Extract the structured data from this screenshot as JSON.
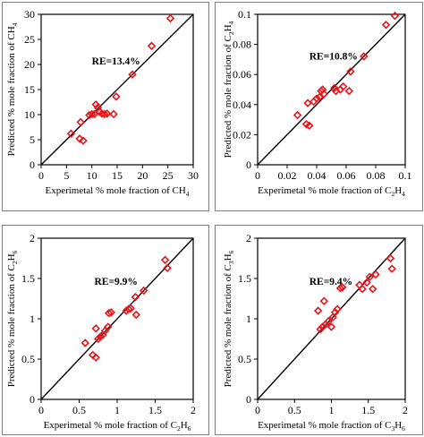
{
  "style": {
    "marker_color": "#e8141b",
    "line_color": "#000000",
    "border_color": "#7f7f7f"
  },
  "chart_data": [
    {
      "type": "scatter",
      "species_label": "CH4",
      "xlabel": [
        "Experimetal % mole fraction of CH",
        "4"
      ],
      "ylabel": [
        "Predicted % mole fraction of CH",
        "4"
      ],
      "xlim": [
        0,
        30
      ],
      "ylim": [
        0,
        30
      ],
      "xticks": [
        0,
        5,
        10,
        15,
        20,
        25,
        30
      ],
      "yticks": [
        0,
        5,
        10,
        15,
        20,
        25,
        30
      ],
      "tick_labels_x": [
        "0",
        "5",
        "10",
        "15",
        "20",
        "25",
        "30"
      ],
      "tick_labels_y": [
        "0",
        "5",
        "10",
        "15",
        "20",
        "25",
        "30"
      ],
      "annotation": "RE=13.4%",
      "annotation_pos": [
        10,
        20
      ],
      "reference_line": "y = x",
      "grid": false,
      "points": [
        [
          5.9,
          6.2
        ],
        [
          7.6,
          5.2
        ],
        [
          8.3,
          4.8
        ],
        [
          7.8,
          8.5
        ],
        [
          9.5,
          9.9
        ],
        [
          10.0,
          10.1
        ],
        [
          10.5,
          10.1
        ],
        [
          10.8,
          12.0
        ],
        [
          11.2,
          11.4
        ],
        [
          11.5,
          10.6
        ],
        [
          12.0,
          10.2
        ],
        [
          12.5,
          10.1
        ],
        [
          13.0,
          10.2
        ],
        [
          14.3,
          10.1
        ],
        [
          14.8,
          13.6
        ],
        [
          18.0,
          18.0
        ],
        [
          21.8,
          23.7
        ],
        [
          25.5,
          29.2
        ]
      ]
    },
    {
      "type": "scatter",
      "species_label": "C2H4",
      "xlabel": [
        "Experimetal % mole fraction of C",
        "2",
        "H",
        "4"
      ],
      "ylabel": [
        "Predicted % mole fraction of C",
        "2",
        "H",
        "4"
      ],
      "xlim": [
        0,
        0.1
      ],
      "ylim": [
        0,
        0.1
      ],
      "xticks": [
        0,
        0.02,
        0.04,
        0.06,
        0.08,
        0.1
      ],
      "yticks": [
        0,
        0.02,
        0.04,
        0.06,
        0.08,
        0.1
      ],
      "tick_labels_x": [
        "0",
        "0.02",
        "0.04",
        "0.06",
        "0.08",
        "0.1"
      ],
      "tick_labels_y": [
        "0",
        "0.02",
        "0.04",
        "0.06",
        "0.08",
        "0.1"
      ],
      "annotation": "RE=10.8%",
      "annotation_pos": [
        0.035,
        0.07
      ],
      "reference_line": "y = x",
      "grid": false,
      "points": [
        [
          0.027,
          0.033
        ],
        [
          0.033,
          0.027
        ],
        [
          0.035,
          0.026
        ],
        [
          0.034,
          0.041
        ],
        [
          0.038,
          0.042
        ],
        [
          0.04,
          0.044
        ],
        [
          0.042,
          0.045
        ],
        [
          0.043,
          0.049
        ],
        [
          0.044,
          0.05
        ],
        [
          0.045,
          0.047
        ],
        [
          0.052,
          0.051
        ],
        [
          0.053,
          0.049
        ],
        [
          0.056,
          0.05
        ],
        [
          0.058,
          0.052
        ],
        [
          0.062,
          0.049
        ],
        [
          0.063,
          0.062
        ],
        [
          0.072,
          0.072
        ],
        [
          0.087,
          0.093
        ],
        [
          0.093,
          0.099
        ]
      ]
    },
    {
      "type": "scatter",
      "species_label": "C2H6",
      "xlabel": [
        "Experimetal % mole fraction of C",
        "2",
        "H",
        "6"
      ],
      "ylabel": [
        "Predicted % mole fraction of C",
        "2",
        "H",
        "6"
      ],
      "xlim": [
        0,
        2
      ],
      "ylim": [
        0,
        2
      ],
      "xticks": [
        0,
        0.5,
        1,
        1.5,
        2
      ],
      "yticks": [
        0,
        0.5,
        1,
        1.5,
        2
      ],
      "tick_labels_x": [
        "0",
        "0.5",
        "1",
        "1.5",
        "2"
      ],
      "tick_labels_y": [
        "0",
        "0.5",
        "1",
        "1.5",
        "2"
      ],
      "annotation": "RE=9.9%",
      "annotation_pos": [
        0.7,
        1.42
      ],
      "reference_line": "y = x",
      "grid": false,
      "points": [
        [
          0.58,
          0.7
        ],
        [
          0.68,
          0.55
        ],
        [
          0.72,
          0.52
        ],
        [
          0.72,
          0.88
        ],
        [
          0.75,
          0.75
        ],
        [
          0.78,
          0.78
        ],
        [
          0.81,
          0.8
        ],
        [
          0.84,
          0.85
        ],
        [
          0.88,
          0.9
        ],
        [
          0.89,
          1.07
        ],
        [
          0.92,
          1.08
        ],
        [
          1.12,
          1.1
        ],
        [
          1.15,
          1.12
        ],
        [
          1.18,
          1.13
        ],
        [
          1.24,
          1.27
        ],
        [
          1.25,
          1.05
        ],
        [
          1.35,
          1.35
        ],
        [
          1.63,
          1.73
        ],
        [
          1.66,
          1.63
        ]
      ]
    },
    {
      "type": "scatter",
      "species_label": "C3H6",
      "xlabel": [
        "Experimetal % mole fraction of C",
        "3",
        "H",
        "6"
      ],
      "ylabel": [
        "Predicted % mole fraction of C",
        "3",
        "H",
        "6"
      ],
      "xlim": [
        0,
        2
      ],
      "ylim": [
        0,
        2
      ],
      "xticks": [
        0,
        0.5,
        1,
        1.5,
        2
      ],
      "yticks": [
        0,
        0.5,
        1,
        1.5,
        2
      ],
      "tick_labels_x": [
        "0",
        "0.5",
        "1",
        "1.5",
        "2"
      ],
      "tick_labels_y": [
        "0",
        "0.5",
        "1",
        "1.5",
        "2"
      ],
      "annotation": "RE=9.4%",
      "annotation_pos": [
        0.7,
        1.42
      ],
      "reference_line": "y = x",
      "grid": false,
      "points": [
        [
          0.82,
          1.1
        ],
        [
          0.85,
          0.87
        ],
        [
          0.88,
          0.9
        ],
        [
          0.9,
          1.22
        ],
        [
          0.92,
          0.93
        ],
        [
          0.96,
          0.97
        ],
        [
          1.0,
          0.9
        ],
        [
          1.02,
          1.02
        ],
        [
          1.05,
          1.08
        ],
        [
          1.08,
          1.12
        ],
        [
          1.12,
          1.38
        ],
        [
          1.15,
          1.39
        ],
        [
          1.38,
          1.42
        ],
        [
          1.42,
          1.37
        ],
        [
          1.48,
          1.45
        ],
        [
          1.52,
          1.52
        ],
        [
          1.56,
          1.37
        ],
        [
          1.6,
          1.55
        ],
        [
          1.8,
          1.75
        ],
        [
          1.82,
          1.62
        ]
      ]
    }
  ]
}
